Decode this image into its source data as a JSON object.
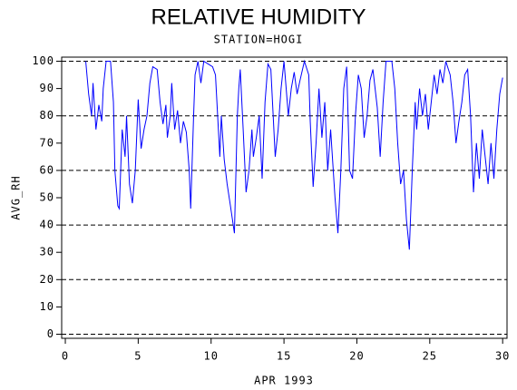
{
  "chart_data": {
    "type": "line",
    "title": "RELATIVE HUMIDITY",
    "subtitle": "STATION=HOGI",
    "x_label": "APR 1993",
    "y_label": "AVG_RH",
    "xlim": [
      -0.25,
      30.3
    ],
    "xticks": [
      0,
      5,
      10,
      15,
      20,
      25,
      30
    ],
    "ylim": [
      -1.5,
      101.5
    ],
    "yticks": [
      0,
      10,
      20,
      30,
      40,
      50,
      60,
      70,
      80,
      90,
      100
    ],
    "grid": true,
    "x": [
      1.4,
      1.6,
      1.8,
      1.9,
      2.1,
      2.3,
      2.5,
      2.6,
      2.8,
      3.1,
      3.3,
      3.4,
      3.6,
      3.7,
      3.9,
      4.1,
      4.2,
      4.4,
      4.6,
      4.8,
      5.0,
      5.2,
      5.4,
      5.6,
      5.8,
      6.0,
      6.3,
      6.5,
      6.7,
      6.9,
      7.0,
      7.2,
      7.3,
      7.5,
      7.7,
      7.9,
      8.1,
      8.3,
      8.5,
      8.6,
      8.8,
      8.9,
      9.1,
      9.3,
      9.5,
      9.8,
      10.1,
      10.3,
      10.5,
      10.6,
      10.7,
      10.9,
      11.1,
      11.3,
      11.6,
      11.8,
      11.9,
      12.0,
      12.2,
      12.4,
      12.6,
      12.8,
      12.9,
      13.1,
      13.3,
      13.5,
      13.7,
      13.9,
      14.1,
      14.4,
      14.6,
      14.8,
      15.0,
      15.3,
      15.5,
      15.7,
      15.9,
      16.1,
      16.4,
      16.7,
      16.8,
      17.0,
      17.2,
      17.4,
      17.6,
      17.8,
      18.0,
      18.2,
      18.5,
      18.7,
      18.9,
      19.1,
      19.3,
      19.5,
      19.7,
      19.9,
      20.1,
      20.3,
      20.5,
      20.7,
      20.9,
      21.1,
      21.4,
      21.6,
      21.8,
      22.0,
      22.4,
      22.6,
      22.8,
      23.0,
      23.2,
      23.4,
      23.6,
      23.8,
      24.0,
      24.1,
      24.3,
      24.5,
      24.7,
      24.9,
      25.1,
      25.3,
      25.5,
      25.7,
      25.9,
      26.1,
      26.4,
      26.6,
      26.8,
      27.0,
      27.2,
      27.4,
      27.6,
      27.8,
      28.0,
      28.2,
      28.4,
      28.6,
      28.8,
      29.0,
      29.2,
      29.4,
      29.6,
      29.8,
      30.0
    ],
    "series": [
      {
        "name": "AVG_RH",
        "color": "#0000ff",
        "values": [
          100,
          88,
          80,
          92,
          75,
          84,
          78,
          90,
          100,
          100,
          85,
          60,
          47,
          46,
          75,
          65,
          80,
          55,
          48,
          60,
          86,
          68,
          75,
          80,
          92,
          98,
          97,
          85,
          77,
          84,
          72,
          80,
          92,
          75,
          82,
          70,
          78,
          74,
          60,
          46,
          80,
          95,
          100,
          92,
          100,
          99,
          98,
          95,
          75,
          65,
          80,
          64,
          55,
          48,
          37,
          80,
          90,
          97,
          75,
          52,
          60,
          75,
          65,
          72,
          80,
          57,
          85,
          99,
          97,
          65,
          75,
          90,
          100,
          80,
          90,
          96,
          88,
          93,
          100,
          95,
          78,
          54,
          70,
          90,
          72,
          85,
          60,
          75,
          50,
          37,
          60,
          90,
          98,
          60,
          57,
          80,
          95,
          90,
          72,
          80,
          93,
          97,
          83,
          65,
          85,
          100,
          100,
          90,
          70,
          55,
          60,
          42,
          31,
          60,
          85,
          75,
          90,
          80,
          88,
          75,
          85,
          95,
          88,
          97,
          92,
          100,
          95,
          85,
          70,
          78,
          85,
          95,
          97,
          80,
          52,
          70,
          57,
          75,
          65,
          55,
          70,
          57,
          75,
          88,
          94
        ]
      }
    ]
  }
}
